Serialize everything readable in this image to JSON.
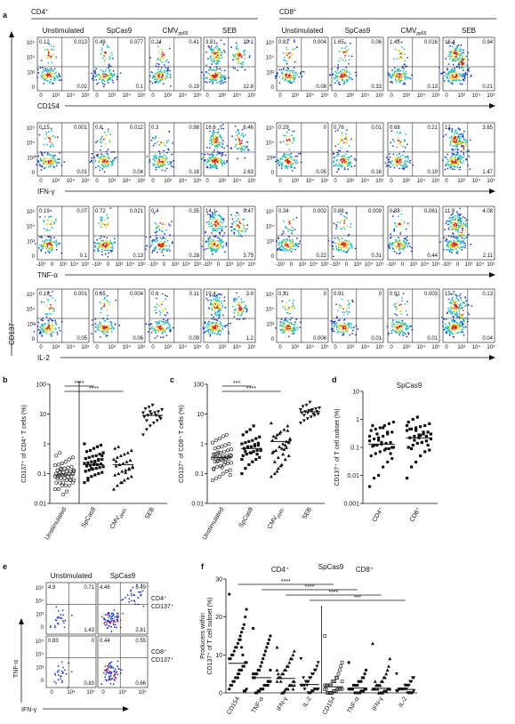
{
  "panel_letters": [
    "a",
    "b",
    "c",
    "d",
    "e",
    "f"
  ],
  "panel_a": {
    "group_left": "CD4",
    "group_right": "CD8",
    "group_sup": "+",
    "columns": [
      "Unstimulated",
      "SpCas9",
      "CMV",
      "SEB"
    ],
    "cmv_sub": "pp65",
    "y_axis_label": "CD137",
    "row_labels": [
      "CD154",
      "IFN-γ",
      "TNF-α",
      "IL-2"
    ],
    "y_ticks": [
      "10⁵",
      "10⁴",
      "10³",
      "0",
      "-10³"
    ],
    "x_ticks": [
      "0",
      "10³",
      "10⁴",
      "10⁵"
    ],
    "x_ticks_tnf": [
      "-10³",
      "0",
      "10³",
      "10⁴",
      "10⁵"
    ],
    "quadrant_values": {
      "CD154": {
        "CD4": [
          [
            "0.12",
            "0.013",
            "0.02",
            "0.1"
          ],
          [
            "0.48",
            "0.077",
            "0.1",
            ""
          ],
          [
            "0.24",
            "0.41",
            "0.19",
            ""
          ],
          [
            "3.81",
            "19.1",
            "12.8",
            ""
          ]
        ],
        "CD8": [
          [
            "0.81",
            "0.004",
            "0.08",
            ""
          ],
          [
            "1.65",
            "0.06",
            "0.33",
            ""
          ],
          [
            "1.45",
            "0.016",
            "0.13",
            ""
          ],
          [
            "16.4",
            "0.94",
            "0.21",
            ""
          ]
        ]
      },
      "IFN-γ": {
        "CD4": [
          [
            "0.15",
            "0.001",
            "0.01",
            ""
          ],
          [
            "0.6",
            "0.012",
            "0.04",
            ""
          ],
          [
            "0.3",
            "0.98",
            "0.18",
            ""
          ],
          [
            "16.6",
            "6.46",
            "2.63",
            ""
          ]
        ],
        "CD8": [
          [
            "0.29",
            "0",
            "0.05",
            ""
          ],
          [
            "0.76",
            "0.01",
            "0.16",
            ""
          ],
          [
            "0.68",
            "0.21",
            "0.19",
            ""
          ],
          [
            "12",
            "3.65",
            "1.47",
            ""
          ]
        ]
      },
      "TNF-α": {
        "CD4": [
          [
            "0.19",
            "0.07",
            "0.1",
            ""
          ],
          [
            "0.72",
            "0.021",
            "0.13",
            ""
          ],
          [
            "0.4",
            "0.35",
            "0.28",
            ""
          ],
          [
            "14.1",
            "9.47",
            "3.75",
            ""
          ]
        ],
        "CD8": [
          [
            "0.34",
            "0.002",
            "0.22",
            ""
          ],
          [
            "0.88",
            "0.009",
            "0.31",
            ""
          ],
          [
            "0.88",
            "0.061",
            "0.44",
            ""
          ],
          [
            "11.9",
            "4.08",
            "2.11",
            ""
          ]
        ]
      },
      "IL-2": {
        "CD4": [
          [
            "0.16",
            "0.001",
            "0.05",
            ""
          ],
          [
            "0.65",
            "0.004",
            "0.06",
            ""
          ],
          [
            "0.6",
            "0.11",
            "0.09",
            ""
          ],
          [
            "19.4",
            "3.9",
            "1.2",
            ""
          ]
        ],
        "CD8": [
          [
            "0.31",
            "0",
            "0.006",
            ""
          ],
          [
            "0.91",
            "0",
            "0.01",
            ""
          ],
          [
            "0.91",
            "0.003",
            "0.01",
            ""
          ],
          [
            "15.7",
            "0.13",
            "0.04",
            ""
          ]
        ]
      }
    }
  },
  "panel_b": {
    "ylabel": "CD137⁺ of CD4⁺ T cells (%)",
    "ticks": [
      "100",
      "10",
      "1",
      "0.1",
      "0.01"
    ],
    "categories": [
      "Unstimulated",
      "SpCas9",
      "CMV",
      "SEB"
    ],
    "sig": [
      "****",
      "****"
    ]
  },
  "panel_c": {
    "ylabel": "CD137⁺ of CD8⁺ T cells (%)",
    "ticks": [
      "100",
      "10",
      "1",
      "0.1",
      "0.01"
    ],
    "categories": [
      "Unstimulated",
      "SpCas9",
      "CMV",
      "SEB"
    ],
    "sig": [
      "***",
      "****"
    ]
  },
  "panel_d": {
    "title": "SpCas9",
    "ylabel": "CD137⁺ of T cell subset (%)",
    "ticks": [
      "10",
      "1",
      "0.1",
      "0.01",
      "0.001"
    ],
    "categories": [
      "CD4⁺",
      "CD8⁺"
    ]
  },
  "panel_e": {
    "columns": [
      "Unstimulated",
      "SpCas9"
    ],
    "xlabel": "IFN-γ",
    "ylabel": "TNF-α",
    "y_ticks": [
      "10⁵",
      "10⁴",
      "10³",
      "0"
    ],
    "x_ticks": [
      "0",
      "10⁴",
      "10⁵"
    ],
    "row_labels": [
      "CD4⁺ CD137⁺",
      "CD8⁺ CD137⁺"
    ],
    "values": {
      "CD4": {
        "Unstimulated": [
          "4.9",
          "0.71",
          "1.43"
        ],
        "SpCas9": [
          "4.46",
          "6.49",
          "2.81"
        ]
      },
      "CD8": {
        "Unstimulated": [
          "0.83",
          "0",
          "0.83"
        ],
        "SpCas9": [
          "0.44",
          "0.55",
          "0.66"
        ]
      }
    }
  },
  "panel_f": {
    "title": "SpCas9",
    "group_left": "CD4⁺",
    "group_right": "CD8⁺",
    "ylabel": "Producers within CD137⁺ of T cell subset (%)",
    "ticks": [
      "30",
      "20",
      "10",
      "0"
    ],
    "categories": [
      "CD154",
      "TNF-α",
      "IFN-γ",
      "IL-2",
      "CD154",
      "TNF-α",
      "IFN-γ",
      "IL-2"
    ],
    "sig": [
      "****",
      "****",
      "****",
      "***"
    ]
  },
  "colors": {
    "scatter_low": "#1f3fd0",
    "scatter_mid": "#22c0c0",
    "scatter_high": "#e8d81a",
    "scatter_core": "#e02020"
  },
  "chart_data": [
    {
      "type": "scatter",
      "panel": "b",
      "ylabel": "CD137⁺ of CD4⁺ T cells (%)",
      "yscale": "log",
      "ylim": [
        0.01,
        100
      ],
      "categories": [
        "Unstimulated",
        "SpCas9",
        "CMV",
        "SEB"
      ],
      "medians": [
        0.09,
        0.2,
        0.2,
        9
      ],
      "series": [
        {
          "name": "Unstimulated",
          "values": [
            0.03,
            0.03,
            0.04,
            0.04,
            0.04,
            0.05,
            0.05,
            0.05,
            0.05,
            0.06,
            0.06,
            0.06,
            0.07,
            0.07,
            0.07,
            0.08,
            0.08,
            0.08,
            0.09,
            0.09,
            0.09,
            0.1,
            0.1,
            0.1,
            0.11,
            0.11,
            0.12,
            0.12,
            0.13,
            0.13,
            0.14,
            0.15,
            0.16,
            0.17,
            0.19,
            0.2,
            0.22,
            0.25,
            0.3,
            0.35,
            0.4,
            0.5,
            0.02,
            0.025,
            0.06,
            0.12,
            0.08,
            0.15
          ]
        },
        {
          "name": "SpCas9",
          "values": [
            0.05,
            0.07,
            0.08,
            0.09,
            0.1,
            0.11,
            0.12,
            0.13,
            0.14,
            0.15,
            0.16,
            0.17,
            0.18,
            0.19,
            0.2,
            0.2,
            0.21,
            0.22,
            0.23,
            0.25,
            0.26,
            0.28,
            0.3,
            0.32,
            0.35,
            0.38,
            0.4,
            0.45,
            0.5,
            0.55,
            0.6,
            0.7,
            0.8,
            0.9,
            1.0,
            0.06,
            0.15,
            0.24,
            0.3,
            0.4
          ]
        },
        {
          "name": "CMV",
          "values": [
            0.03,
            0.04,
            0.05,
            0.06,
            0.07,
            0.08,
            0.09,
            0.1,
            0.12,
            0.13,
            0.15,
            0.16,
            0.18,
            0.2,
            0.22,
            0.25,
            0.28,
            0.3,
            0.35,
            0.4,
            0.45,
            0.5,
            0.6,
            0.7,
            0.8,
            0.05,
            0.11,
            0.14,
            0.17,
            0.26
          ]
        },
        {
          "name": "SEB",
          "values": [
            2.0,
            3.0,
            4.0,
            5.0,
            6.0,
            7.0,
            8.0,
            9.0,
            10,
            11,
            12,
            14,
            15,
            17,
            20,
            9,
            8,
            11,
            6,
            12
          ]
        }
      ]
    },
    {
      "type": "scatter",
      "panel": "c",
      "ylabel": "CD137⁺ of CD8⁺ T cells (%)",
      "yscale": "log",
      "ylim": [
        0.01,
        100
      ],
      "categories": [
        "Unstimulated",
        "SpCas9",
        "CMV",
        "SEB"
      ],
      "medians": [
        0.35,
        0.7,
        1.2,
        12
      ],
      "series": [
        {
          "name": "Unstimulated",
          "values": [
            0.06,
            0.07,
            0.08,
            0.1,
            0.12,
            0.13,
            0.15,
            0.17,
            0.18,
            0.2,
            0.22,
            0.23,
            0.25,
            0.27,
            0.28,
            0.3,
            0.32,
            0.33,
            0.35,
            0.37,
            0.38,
            0.4,
            0.42,
            0.45,
            0.48,
            0.5,
            0.55,
            0.6,
            0.65,
            0.7,
            0.75,
            0.8,
            0.9,
            1.0,
            1.1,
            1.3,
            1.5,
            1.8,
            2.0,
            0.09,
            0.14,
            0.26,
            0.3,
            0.34,
            0.36,
            0.4,
            0.44,
            0.52,
            0.16,
            0.24
          ]
        },
        {
          "name": "SpCas9",
          "values": [
            0.1,
            0.15,
            0.2,
            0.25,
            0.3,
            0.35,
            0.4,
            0.45,
            0.5,
            0.55,
            0.6,
            0.65,
            0.7,
            0.75,
            0.8,
            0.85,
            0.9,
            1.0,
            1.1,
            1.2,
            1.3,
            1.5,
            1.7,
            2.0,
            2.5,
            3.0,
            4.0,
            0.45,
            0.6,
            0.7,
            0.8,
            0.5,
            0.95,
            1.05,
            0.3,
            0.55
          ]
        },
        {
          "name": "CMV",
          "values": [
            0.08,
            0.1,
            0.15,
            0.2,
            0.3,
            0.4,
            0.5,
            0.6,
            0.8,
            1.0,
            1.2,
            1.5,
            1.8,
            2.0,
            2.5,
            3.0,
            4.0,
            5.0,
            0.25,
            0.35,
            0.7,
            0.9,
            1.1,
            1.3,
            1.6,
            2.2,
            0.45,
            0.75,
            1.4,
            0.55,
            0.12,
            0.18,
            0.65,
            2.8
          ]
        },
        {
          "name": "SEB",
          "values": [
            5,
            6,
            7,
            8,
            9,
            10,
            11,
            12,
            13,
            14,
            15,
            16,
            18,
            20,
            25,
            10,
            12,
            14,
            9,
            11,
            13
          ]
        }
      ]
    },
    {
      "type": "scatter",
      "panel": "d",
      "title": "SpCas9",
      "ylabel": "CD137⁺ of T cell subset (%)",
      "yscale": "log",
      "ylim": [
        0.001,
        10
      ],
      "categories": [
        "CD4⁺",
        "CD8⁺"
      ],
      "medians": [
        0.13,
        0.22
      ],
      "series": [
        {
          "name": "CD4⁺",
          "values": [
            0.004,
            0.008,
            0.01,
            0.02,
            0.03,
            0.04,
            0.05,
            0.06,
            0.07,
            0.08,
            0.09,
            0.1,
            0.11,
            0.12,
            0.13,
            0.14,
            0.15,
            0.17,
            0.2,
            0.22,
            0.25,
            0.3,
            0.35,
            0.4,
            0.45,
            0.5,
            0.6,
            0.7,
            0.8,
            0.6,
            0.3,
            0.15,
            0.09,
            0.06,
            0.25,
            0.12,
            0.18,
            0.5,
            0.35,
            0.1
          ]
        },
        {
          "name": "CD8⁺",
          "values": [
            0.008,
            0.02,
            0.03,
            0.05,
            0.07,
            0.08,
            0.1,
            0.12,
            0.14,
            0.15,
            0.17,
            0.2,
            0.22,
            0.25,
            0.28,
            0.3,
            0.35,
            0.4,
            0.45,
            0.5,
            0.55,
            0.6,
            0.7,
            0.8,
            1.0,
            1.2,
            0.15,
            0.25,
            0.3,
            0.45,
            0.18,
            0.22,
            0.35,
            0.12,
            0.6,
            0.09,
            0.4,
            0.27
          ]
        }
      ]
    },
    {
      "type": "scatter",
      "panel": "f",
      "title": "SpCas9",
      "ylabel": "Producers within CD137⁺ of T cell subset (%)",
      "ylim": [
        0,
        30
      ],
      "categories": [
        "CD154",
        "TNF-α",
        "IFN-γ",
        "IL-2",
        "CD154",
        "TNF-α",
        "IFN-γ",
        "IL-2"
      ],
      "medians": [
        7.8,
        4.0,
        3.8,
        2.2,
        1.6,
        1.3,
        1.2,
        0.9
      ],
      "series": [
        {
          "name": "CD4⁺ CD154",
          "values": [
            26,
            22,
            20,
            18,
            17,
            16,
            15,
            14,
            13,
            12,
            12,
            11,
            10,
            10,
            9,
            9,
            8,
            8,
            7,
            7,
            6,
            6,
            5,
            5,
            4,
            4,
            3,
            3,
            2,
            2,
            1,
            1,
            0.5,
            0.5,
            10,
            12,
            14,
            6,
            4
          ]
        },
        {
          "name": "CD4⁺ TNF-α",
          "values": [
            17,
            15,
            14,
            13,
            12,
            11,
            10,
            9,
            8,
            7,
            6,
            6,
            5,
            5,
            4,
            4,
            3,
            3,
            3,
            2,
            2,
            2,
            1,
            1,
            1,
            0.5,
            0.5,
            0,
            0,
            4,
            5,
            6,
            3,
            2
          ]
        },
        {
          "name": "CD4⁺ IFN-γ",
          "values": [
            12,
            11,
            10,
            9,
            9,
            8,
            7,
            7,
            6,
            6,
            5,
            5,
            4,
            4,
            4,
            3,
            3,
            3,
            2,
            2,
            2,
            1,
            1,
            1,
            0.5,
            0,
            0,
            3,
            4,
            5,
            6,
            2,
            1
          ]
        },
        {
          "name": "CD4⁺ IL-2",
          "values": [
            9,
            8,
            7,
            6,
            6,
            5,
            5,
            4,
            4,
            3,
            3,
            3,
            2,
            2,
            2,
            2,
            1,
            1,
            1,
            1,
            0.5,
            0.5,
            0,
            0,
            0,
            2,
            3,
            1,
            4
          ]
        },
        {
          "name": "CD8⁺ CD154",
          "values": [
            15,
            8,
            7,
            6,
            5,
            4,
            4,
            3,
            3,
            3,
            2,
            2,
            2,
            2,
            2,
            1,
            1,
            1,
            1,
            1,
            1,
            0.5,
            0.5,
            0.5,
            0,
            0,
            0,
            0,
            0,
            1,
            2,
            3
          ]
        },
        {
          "name": "CD8⁺ TNF-α",
          "values": [
            8,
            6,
            5,
            4,
            4,
            3,
            3,
            3,
            2,
            2,
            2,
            2,
            1,
            1,
            1,
            1,
            1,
            1,
            0.5,
            0.5,
            0.5,
            0,
            0,
            0,
            0,
            0,
            2,
            1
          ]
        },
        {
          "name": "CD8⁺ IFN-γ",
          "values": [
            13,
            9,
            7,
            6,
            5,
            4,
            4,
            3,
            3,
            2,
            2,
            2,
            2,
            1,
            1,
            1,
            1,
            1,
            1,
            0.5,
            0.5,
            0.5,
            0,
            0,
            0,
            0,
            1,
            2,
            3
          ]
        },
        {
          "name": "CD8⁺ IL-2",
          "values": [
            5,
            4,
            4,
            3,
            3,
            2,
            2,
            2,
            2,
            1,
            1,
            1,
            1,
            1,
            0.5,
            0.5,
            0.5,
            0,
            0,
            0,
            0,
            0,
            1,
            2
          ]
        }
      ]
    }
  ]
}
